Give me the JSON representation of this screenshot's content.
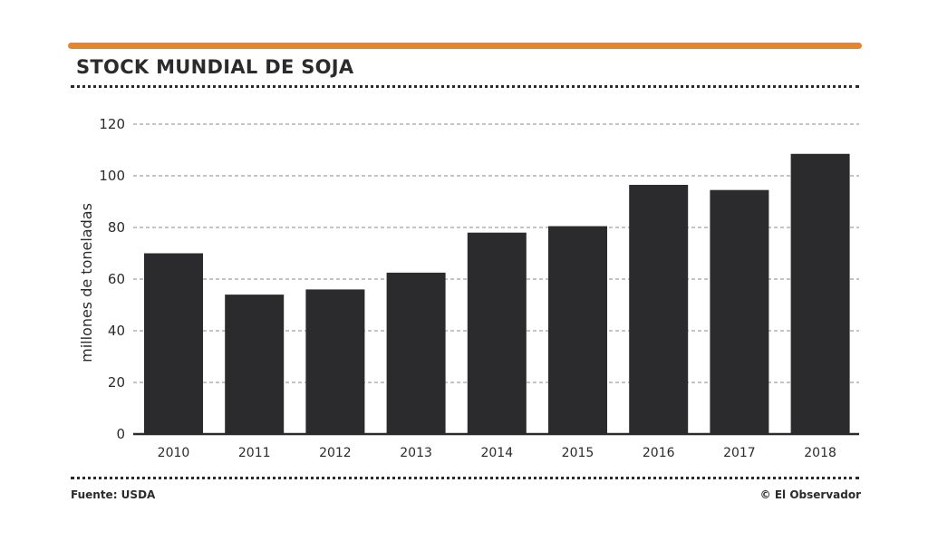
{
  "header": {
    "title": "STOCK MUNDIAL DE SOJA"
  },
  "footer": {
    "source": "Fuente: USDA",
    "credit": "© El Observador"
  },
  "colors": {
    "accent": "#e8842c",
    "bars": "#2b2b2d",
    "grid": "#8a8a8a"
  },
  "chart_data": {
    "type": "bar",
    "title": "STOCK MUNDIAL DE SOJA",
    "xlabel": "",
    "ylabel": "millones de toneladas",
    "categories": [
      "2010",
      "2011",
      "2012",
      "2013",
      "2014",
      "2015",
      "2016",
      "2017",
      "2018"
    ],
    "values": [
      70,
      54,
      56,
      62.5,
      78,
      80.5,
      96.5,
      94.5,
      108.5
    ],
    "ylim": [
      0,
      120
    ],
    "yticks": [
      0,
      20,
      40,
      60,
      80,
      100,
      120
    ],
    "grid": true
  }
}
